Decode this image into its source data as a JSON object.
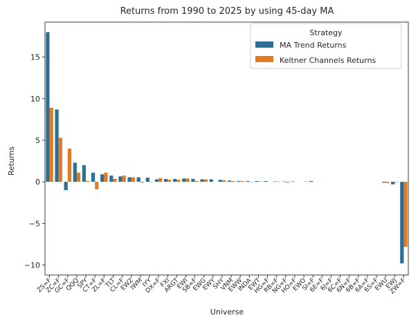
{
  "chart_data": {
    "type": "bar",
    "title": "Returns from 1990 to 2025 by using 45-day MA",
    "xlabel": "Universe",
    "ylabel": "Returns",
    "ylim": [
      -11.2,
      19.2
    ],
    "yticks": [
      -10,
      -5,
      0,
      5,
      10,
      15
    ],
    "ytick_labels": [
      "−10",
      "−5",
      "0",
      "5",
      "10",
      "15"
    ],
    "legend": {
      "title": "Strategy",
      "position": "top-right"
    },
    "categories": [
      "ZS=F",
      "ZC=F",
      "GC=F",
      "QQQ",
      "SPY",
      "CT=F",
      "ZL=F",
      "TLT",
      "CL=F",
      "EWZ",
      "IWM",
      "IYY",
      "DX=F",
      "FXI",
      "ARGT",
      "EWI",
      "SB=F",
      "EWG",
      "EWY",
      "SHY",
      "VNM",
      "EWW",
      "INDA",
      "EWT",
      "HG=F",
      "RB=F",
      "NG=F",
      "HO=F",
      "EWO",
      "SI=F",
      "6E=F",
      "6J=F",
      "6C=F",
      "6N=F",
      "6B=F",
      "6A=F",
      "6S=F",
      "EWU",
      "EWJ",
      "ZW=F"
    ],
    "series": [
      {
        "name": "MA Trend Returns",
        "color": "#2f6f96",
        "values": [
          18.0,
          8.7,
          -1.0,
          2.3,
          2.0,
          1.1,
          0.9,
          0.75,
          0.65,
          0.55,
          0.55,
          0.5,
          0.3,
          0.35,
          0.35,
          0.4,
          0.35,
          0.3,
          0.3,
          0.25,
          0.15,
          0.1,
          0.1,
          0.1,
          0.1,
          0.05,
          0.05,
          0.05,
          0.0,
          0.1,
          0.0,
          0.0,
          0.0,
          0.0,
          0.0,
          0.0,
          0.0,
          -0.1,
          -0.3,
          -9.8
        ]
      },
      {
        "name": "Keltner Channels Returns",
        "color": "#e17c24",
        "values": [
          8.9,
          5.3,
          4.0,
          1.1,
          0.1,
          -0.9,
          1.1,
          0.35,
          0.75,
          0.55,
          -0.1,
          -0.05,
          0.45,
          0.25,
          0.25,
          0.4,
          0.1,
          0.3,
          0.0,
          0.2,
          0.1,
          0.1,
          -0.05,
          0.05,
          0.0,
          0.05,
          -0.1,
          0.0,
          0.05,
          0.0,
          0.0,
          0.0,
          0.0,
          0.0,
          0.0,
          0.0,
          0.0,
          -0.15,
          -0.05,
          -7.8
        ]
      }
    ]
  }
}
